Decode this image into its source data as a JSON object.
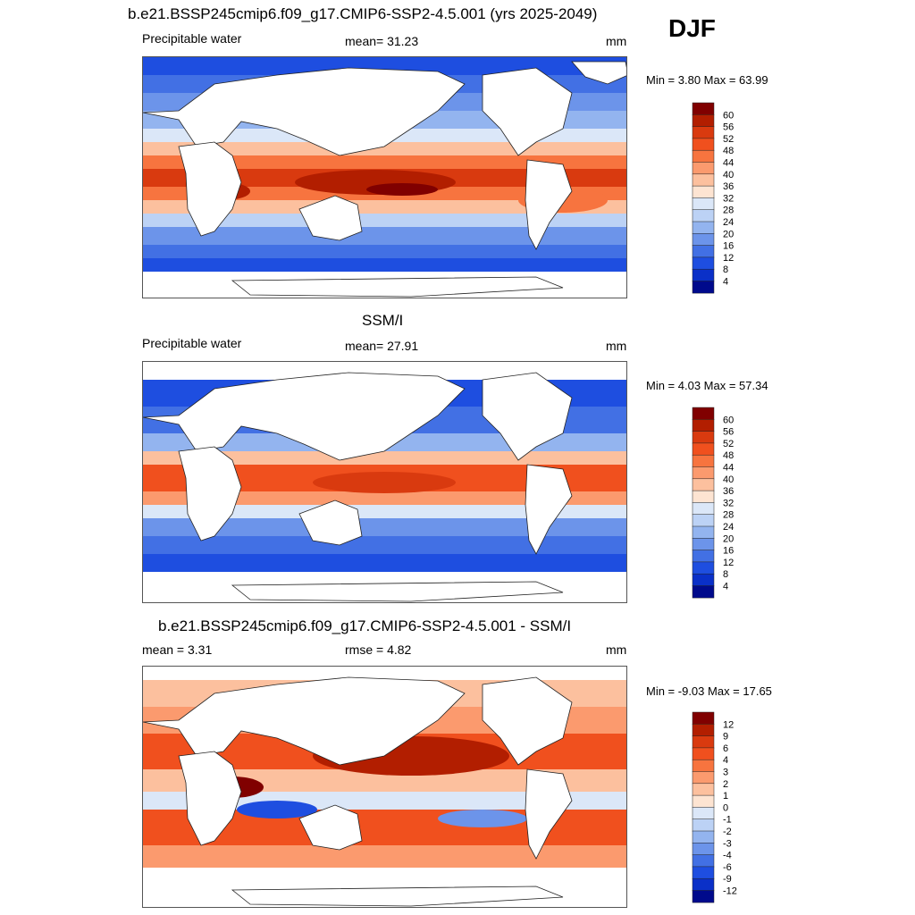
{
  "season": "DJF",
  "panels": [
    {
      "title": "b.e21.BSSP245cmip6.f09_g17.CMIP6-SSP2-4.5.001 (yrs 2025-2049)",
      "left_label": "Precipitable water",
      "center_label": "mean=  31.23",
      "units": "mm",
      "minmax": "Min =   3.80 Max =  63.99"
    },
    {
      "title": "SSM/I",
      "left_label": "Precipitable water",
      "center_label": "mean=  27.91",
      "units": "mm",
      "minmax": "Min =   4.03 Max =  57.34"
    },
    {
      "title": "b.e21.BSSP245cmip6.f09_g17.CMIP6-SSP2-4.5.001 - SSM/I",
      "left_label": "mean =   3.31",
      "center_label": "rmse =   4.82",
      "units": "mm",
      "minmax": "Min =  -9.03 Max =  17.65"
    }
  ],
  "colorbars": {
    "abs": {
      "labels": [
        "60",
        "56",
        "52",
        "48",
        "44",
        "40",
        "36",
        "32",
        "28",
        "24",
        "20",
        "16",
        "12",
        "8",
        "4"
      ],
      "colors": [
        "#800000",
        "#b21e00",
        "#d93a0f",
        "#f0501e",
        "#f7743f",
        "#fb9a6e",
        "#fcc09e",
        "#fde4d2",
        "#dbe7f8",
        "#bcd2f5",
        "#93b4ef",
        "#6c94ea",
        "#4270e4",
        "#1e4ee0",
        "#0a30c8",
        "#000a8c"
      ]
    },
    "diff": {
      "labels": [
        "12",
        "9",
        "6",
        "4",
        "3",
        "2",
        "1",
        "0",
        "-1",
        "-2",
        "-3",
        "-4",
        "-6",
        "-9",
        "-12"
      ],
      "colors": [
        "#800000",
        "#b21e00",
        "#d93a0f",
        "#f0501e",
        "#f7743f",
        "#fb9a6e",
        "#fcc09e",
        "#fde4d2",
        "#dbe7f8",
        "#bcd2f5",
        "#93b4ef",
        "#6c94ea",
        "#4270e4",
        "#1e4ee0",
        "#0a30c8",
        "#000a8c"
      ]
    }
  }
}
